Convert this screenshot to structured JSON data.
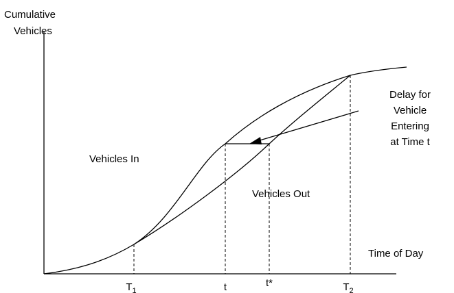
{
  "diagram": {
    "y_axis_label": [
      "Cumulative",
      "Vehicles"
    ],
    "x_axis_label": "Time of  Day",
    "delay_label": [
      "Delay for",
      "Vehicle",
      "Entering",
      "at Time t"
    ],
    "region_in": "Vehicles In",
    "region_out": "Vehicles Out",
    "ticks": [
      {
        "text": "T",
        "sub": "1"
      },
      {
        "text": "t"
      },
      {
        "text": "t*"
      },
      {
        "text": "T",
        "sub": "2"
      }
    ]
  }
}
